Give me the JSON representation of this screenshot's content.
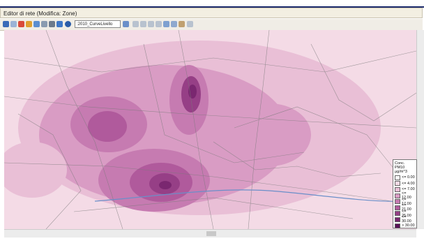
{
  "window": {
    "title": "Editor di rete (Modifica: Zone)",
    "layer_dropdown": ":2010_CurveLivello"
  },
  "legend": {
    "title": "Conc. PM10",
    "unit": "µg/m^3",
    "items": [
      {
        "label": "<= 0.00",
        "color": "#ffffff"
      },
      {
        "label": "<= 4.00",
        "color": "#f4dbe6"
      },
      {
        "label": "<= 7.00",
        "color": "#e9bfd6"
      },
      {
        "label": "<= 12.00",
        "color": "#d99cc4"
      },
      {
        "label": "<= 17.00",
        "color": "#c67bb1"
      },
      {
        "label": "<= 21.00",
        "color": "#b05a9c"
      },
      {
        "label": "<= 25.00",
        "color": "#963f86"
      },
      {
        "label": "<= 30.00",
        "color": "#7a2770"
      },
      {
        "label": "> 30.00",
        "color": "#5a1257"
      }
    ]
  }
}
